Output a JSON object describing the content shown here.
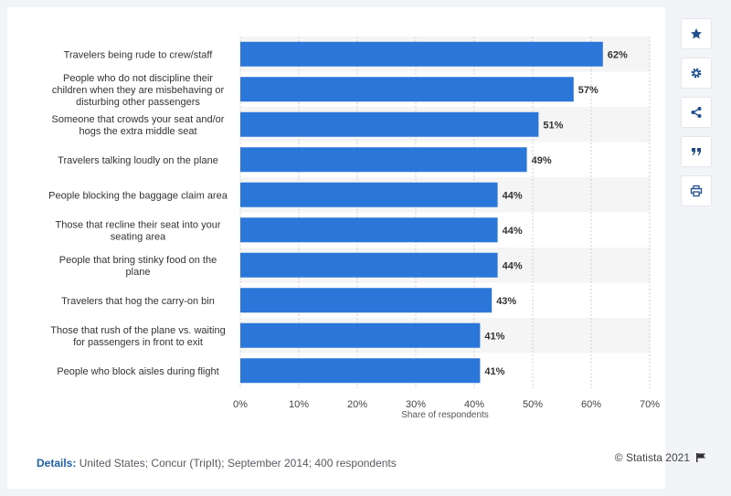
{
  "colors": {
    "bar": "#2b77d9",
    "stripe": "#f5f5f5",
    "grid": "#d0d0d0",
    "accent": "#1f5fa8"
  },
  "chart_data": {
    "type": "bar",
    "orientation": "horizontal",
    "categories": [
      [
        "Travelers being rude to crew/staff"
      ],
      [
        "People who do not discipline their",
        "children when they are misbehaving or",
        "disturbing other passengers"
      ],
      [
        "Someone that crowds your seat and/or",
        "hogs the extra middle seat"
      ],
      [
        "Travelers talking loudly on the plane"
      ],
      [
        "People blocking the baggage claim area"
      ],
      [
        "Those that recline their seat into your",
        "seating area"
      ],
      [
        "People that bring stinky food on the",
        "plane"
      ],
      [
        "Travelers that hog the carry-on bin"
      ],
      [
        "Those that rush of the plane vs. waiting",
        "for passengers in front to exit"
      ],
      [
        "People who block aisles during flight"
      ]
    ],
    "values": [
      62,
      57,
      51,
      49,
      44,
      44,
      44,
      43,
      41,
      41
    ],
    "value_labels": [
      "62%",
      "57%",
      "51%",
      "49%",
      "44%",
      "44%",
      "44%",
      "43%",
      "41%",
      "41%"
    ],
    "xlim": [
      0,
      70
    ],
    "ticks": [
      0,
      10,
      20,
      30,
      40,
      50,
      60,
      70
    ],
    "tick_labels": [
      "0%",
      "10%",
      "20%",
      "30%",
      "40%",
      "50%",
      "60%",
      "70%"
    ],
    "xlabel": "Share of respondents",
    "grid": true
  },
  "toolbar": {
    "items": [
      {
        "icon": "star-icon"
      },
      {
        "icon": "gear-icon"
      },
      {
        "icon": "share-icon"
      },
      {
        "icon": "quote-icon"
      },
      {
        "icon": "print-icon"
      }
    ]
  },
  "footer": {
    "details_label": "Details:",
    "details_text": " United States; Concur (TripIt); September 2014; 400 respondents",
    "copyright": "© Statista 2021"
  }
}
